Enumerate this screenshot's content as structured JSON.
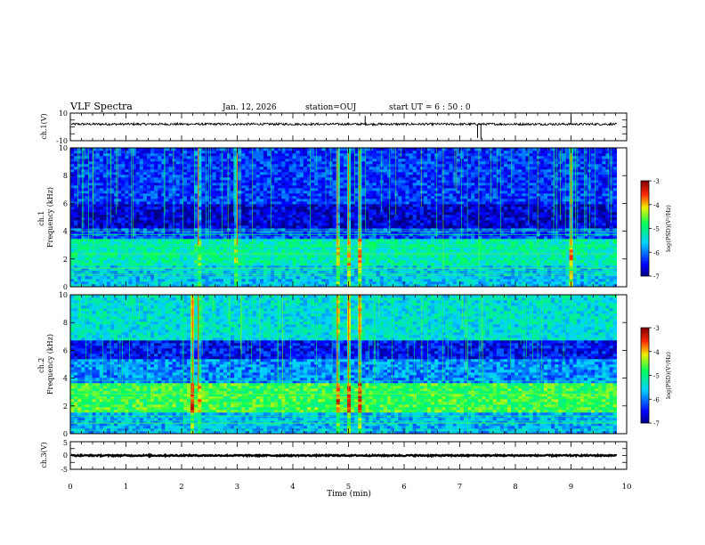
{
  "header": {
    "title": "VLF Spectra",
    "date": "Jan. 12, 2026",
    "station": "station=OUJ",
    "start": "start UT =  6 : 50 : 0"
  },
  "chart_data": [
    {
      "type": "line",
      "name": "ch1-waveform",
      "ylabel": "ch.1(V)",
      "ylim": [
        -10,
        10
      ],
      "yticks": [
        "10",
        "-10"
      ],
      "xlim": [
        0,
        10
      ],
      "baseline_level": 2,
      "noise_amplitude": 0.8,
      "spikes": [
        {
          "x": 5.3,
          "y": 8
        },
        {
          "x": 7.32,
          "y": -8
        },
        {
          "x": 7.38,
          "y": -9
        },
        {
          "x": 9.0,
          "y": 8
        }
      ]
    },
    {
      "type": "heatmap",
      "name": "ch1-spectrogram",
      "ylabel": "ch.1\nFrequency (kHz)",
      "ylim": [
        0,
        10
      ],
      "yticks": [
        "0",
        "2",
        "4",
        "6",
        "8",
        "10"
      ],
      "xlim": [
        0,
        10
      ],
      "data_end": 9.82,
      "colorbar": {
        "label": "log(PSD)(V²/Hz)",
        "range": [
          -7,
          -3
        ],
        "ticks": [
          "-3",
          "-4",
          "-5",
          "-6",
          "-7"
        ]
      },
      "bands": [
        {
          "from": 0,
          "to": 1.5,
          "level": -5.6
        },
        {
          "from": 1.5,
          "to": 3.5,
          "level": -5.2
        },
        {
          "from": 3.5,
          "to": 4.2,
          "level": -6.2
        },
        {
          "from": 4.2,
          "to": 6.0,
          "level": -6.7
        },
        {
          "from": 6.0,
          "to": 10,
          "level": -6.3
        }
      ],
      "bursts": [
        2.3,
        3.0,
        4.8,
        5.0,
        5.2,
        9.0
      ]
    },
    {
      "type": "heatmap",
      "name": "ch2-spectrogram",
      "ylabel": "ch.2\nFrequency (kHz)",
      "ylim": [
        0,
        10
      ],
      "yticks": [
        "0",
        "2",
        "4",
        "6",
        "8",
        "10"
      ],
      "xlim": [
        0,
        10
      ],
      "data_end": 9.82,
      "colorbar": {
        "label": "log(PSD)(V²/Hz)",
        "range": [
          -7,
          -3
        ],
        "ticks": [
          "-3",
          "-4",
          "-5",
          "-6",
          "-7"
        ]
      },
      "bands": [
        {
          "from": 0,
          "to": 1.5,
          "level": -5.7
        },
        {
          "from": 1.5,
          "to": 3.7,
          "level": -4.7
        },
        {
          "from": 3.7,
          "to": 5.3,
          "level": -5.9
        },
        {
          "from": 5.3,
          "to": 6.7,
          "level": -6.5
        },
        {
          "from": 6.7,
          "to": 10,
          "level": -5.4
        }
      ],
      "bursts": [
        2.2,
        2.3,
        4.8,
        5.0,
        5.2
      ]
    },
    {
      "type": "line",
      "name": "ch3-waveform",
      "ylabel": "ch.3(V)",
      "ylim": [
        -5,
        5
      ],
      "yticks": [
        "5",
        "0",
        "-5"
      ],
      "xlim": [
        0,
        10
      ],
      "baseline_level": 0,
      "noise_amplitude": 0.25,
      "xlabel": "Time (min)",
      "xticks": [
        "0",
        "1",
        "2",
        "3",
        "4",
        "5",
        "6",
        "7",
        "8",
        "9",
        "10"
      ]
    }
  ]
}
